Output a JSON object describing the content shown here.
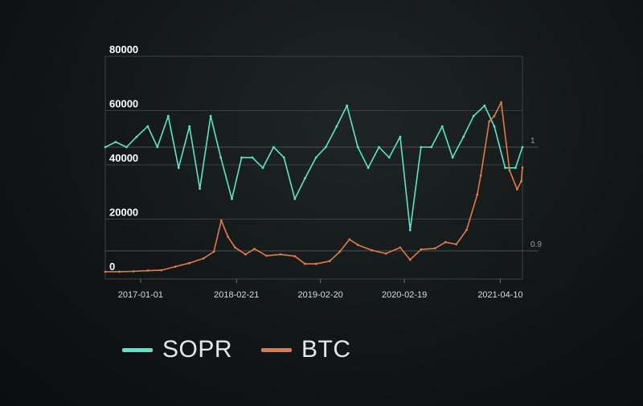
{
  "chart_data": {
    "type": "line",
    "x_ticks": [
      "2017-01-01",
      "2018-02-21",
      "2019-02-20",
      "2020-02-19",
      "2021-04-10"
    ],
    "y_left_ticks": [
      "0",
      "20000",
      "40000",
      "60000",
      "80000"
    ],
    "y_right_ticks": [
      "1",
      "0.9"
    ],
    "ylim_left": [
      0,
      80000
    ],
    "grid": true,
    "legend_position": "bottom-left",
    "series": [
      {
        "name": "SOPR",
        "axis": "right",
        "color": "#5fe3c8",
        "points": [
          [
            "2016-08-01",
            1.0
          ],
          [
            "2016-09-15",
            1.005
          ],
          [
            "2016-11-01",
            1.0
          ],
          [
            "2016-12-15",
            1.01
          ],
          [
            "2017-02-01",
            1.02
          ],
          [
            "2017-03-15",
            1.0
          ],
          [
            "2017-05-01",
            1.03
          ],
          [
            "2017-06-15",
            0.98
          ],
          [
            "2017-08-01",
            1.02
          ],
          [
            "2017-09-15",
            0.96
          ],
          [
            "2017-11-01",
            1.03
          ],
          [
            "2017-12-15",
            0.99
          ],
          [
            "2018-02-01",
            0.95
          ],
          [
            "2018-03-15",
            0.99
          ],
          [
            "2018-05-01",
            0.99
          ],
          [
            "2018-06-15",
            0.98
          ],
          [
            "2018-08-01",
            1.0
          ],
          [
            "2018-09-15",
            0.99
          ],
          [
            "2018-11-01",
            0.95
          ],
          [
            "2018-12-15",
            0.97
          ],
          [
            "2019-02-01",
            0.99
          ],
          [
            "2019-03-15",
            1.0
          ],
          [
            "2019-05-01",
            1.02
          ],
          [
            "2019-06-15",
            1.04
          ],
          [
            "2019-08-01",
            1.0
          ],
          [
            "2019-09-15",
            0.98
          ],
          [
            "2019-11-01",
            1.0
          ],
          [
            "2019-12-15",
            0.99
          ],
          [
            "2020-02-01",
            1.01
          ],
          [
            "2020-03-15",
            0.92
          ],
          [
            "2020-05-01",
            1.0
          ],
          [
            "2020-06-15",
            1.0
          ],
          [
            "2020-08-01",
            1.02
          ],
          [
            "2020-09-15",
            0.99
          ],
          [
            "2020-11-01",
            1.01
          ],
          [
            "2020-12-15",
            1.03
          ],
          [
            "2021-02-01",
            1.04
          ],
          [
            "2021-03-15",
            1.02
          ],
          [
            "2021-05-01",
            0.98
          ],
          [
            "2021-06-15",
            0.98
          ],
          [
            "2021-07-15",
            1.0
          ]
        ]
      },
      {
        "name": "BTC",
        "axis": "left",
        "color": "#e07a4a",
        "points": [
          [
            "2016-08-01",
            580
          ],
          [
            "2016-10-01",
            620
          ],
          [
            "2016-12-01",
            750
          ],
          [
            "2017-02-01",
            1000
          ],
          [
            "2017-04-01",
            1150
          ],
          [
            "2017-06-01",
            2500
          ],
          [
            "2017-08-01",
            3800
          ],
          [
            "2017-10-01",
            5500
          ],
          [
            "2017-11-15",
            8000
          ],
          [
            "2017-12-17",
            19500
          ],
          [
            "2018-01-15",
            13500
          ],
          [
            "2018-02-15",
            9500
          ],
          [
            "2018-04-01",
            7000
          ],
          [
            "2018-05-10",
            9000
          ],
          [
            "2018-07-01",
            6500
          ],
          [
            "2018-09-01",
            7000
          ],
          [
            "2018-11-01",
            6300
          ],
          [
            "2018-12-15",
            3500
          ],
          [
            "2019-02-01",
            3500
          ],
          [
            "2019-04-01",
            4500
          ],
          [
            "2019-05-15",
            8000
          ],
          [
            "2019-06-26",
            12500
          ],
          [
            "2019-08-01",
            10500
          ],
          [
            "2019-10-01",
            8500
          ],
          [
            "2019-12-01",
            7300
          ],
          [
            "2020-02-01",
            9500
          ],
          [
            "2020-03-15",
            5000
          ],
          [
            "2020-05-01",
            8800
          ],
          [
            "2020-07-01",
            9200
          ],
          [
            "2020-08-15",
            11500
          ],
          [
            "2020-10-01",
            10700
          ],
          [
            "2020-11-15",
            16000
          ],
          [
            "2020-12-31",
            29000
          ],
          [
            "2021-01-15",
            36000
          ],
          [
            "2021-02-21",
            56000
          ],
          [
            "2021-03-15",
            58000
          ],
          [
            "2021-04-14",
            63000
          ],
          [
            "2021-05-20",
            38000
          ],
          [
            "2021-06-22",
            31000
          ],
          [
            "2021-07-10",
            34000
          ],
          [
            "2021-07-15",
            39000
          ]
        ]
      }
    ]
  },
  "legend": [
    {
      "label": "SOPR",
      "color": "#5fe3c8"
    },
    {
      "label": "BTC",
      "color": "#e07a4a"
    }
  ]
}
